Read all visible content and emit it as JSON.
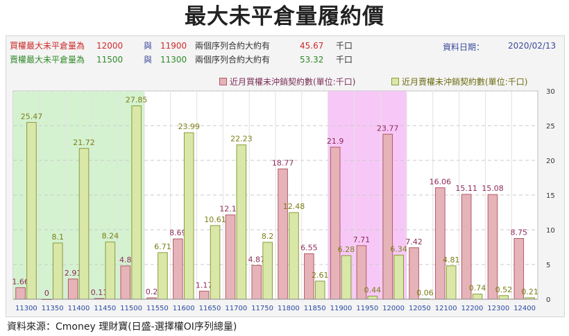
{
  "title": "最大未平倉量履約價",
  "info": {
    "call_row": {
      "label": "買權最大未平倉量為",
      "strike1": "12000",
      "joiner": "與",
      "strike2": "11900",
      "phrase": "兩個序列合約大約有",
      "amount": "45.67",
      "unit": "千口"
    },
    "put_row": {
      "label": "賣權最大未平倉量為",
      "strike1": "11500",
      "joiner": "與",
      "strike2": "11300",
      "phrase": "兩個序列合約大約有",
      "amount": "53.32",
      "unit": "千口"
    },
    "date_label": "資料日期：",
    "date_value": "2020/02/13"
  },
  "source": "資料來源：Cmoney 理財寶(日盛-選擇權OI序列總量)",
  "colors": {
    "call_bar": "#e6b3b8",
    "call_border": "#b05a6a",
    "put_bar": "#d9e8a8",
    "put_border": "#8a9a3a",
    "call_label": "#8e2a5a",
    "put_label": "#7c7c14",
    "green_band": "#d4f2d0",
    "pink_band": "#f7c8f7",
    "axis_tick": "#2a4aa0"
  },
  "chart_data": {
    "type": "bar",
    "categories": [
      "11300",
      "11350",
      "11400",
      "11450",
      "11500",
      "11550",
      "11600",
      "11650",
      "11700",
      "11750",
      "11800",
      "11850",
      "11900",
      "11950",
      "12000",
      "12050",
      "12100",
      "12200",
      "12300",
      "12400"
    ],
    "series": [
      {
        "name": "近月買權未沖銷契約數(單位:千口)",
        "values": [
          1.66,
          0,
          2.91,
          0.11,
          4.8,
          0.2,
          8.69,
          1.17,
          12.14,
          4.87,
          18.77,
          6.55,
          21.9,
          7.71,
          23.77,
          7.42,
          16.06,
          15.11,
          15.08,
          8.75
        ]
      },
      {
        "name": "近月賣權未沖銷契約數(單位:千口)",
        "values": [
          25.47,
          8.1,
          21.72,
          8.24,
          27.85,
          6.71,
          23.99,
          10.61,
          22.23,
          8.2,
          12.48,
          2.61,
          6.28,
          0.44,
          6.34,
          0.06,
          4.81,
          0.74,
          0.52,
          0.21
        ]
      }
    ],
    "ylim": [
      0,
      30
    ],
    "y_ticks": [
      "0",
      "5",
      "10",
      "15",
      "20",
      "25",
      "30"
    ],
    "y_axis_side": "right",
    "grid": true,
    "legend_position": "top-right",
    "highlight_ranges": [
      {
        "from": "11300",
        "to": "11500",
        "color": "green"
      },
      {
        "from": "11900",
        "to": "12000",
        "color": "pink"
      }
    ]
  }
}
